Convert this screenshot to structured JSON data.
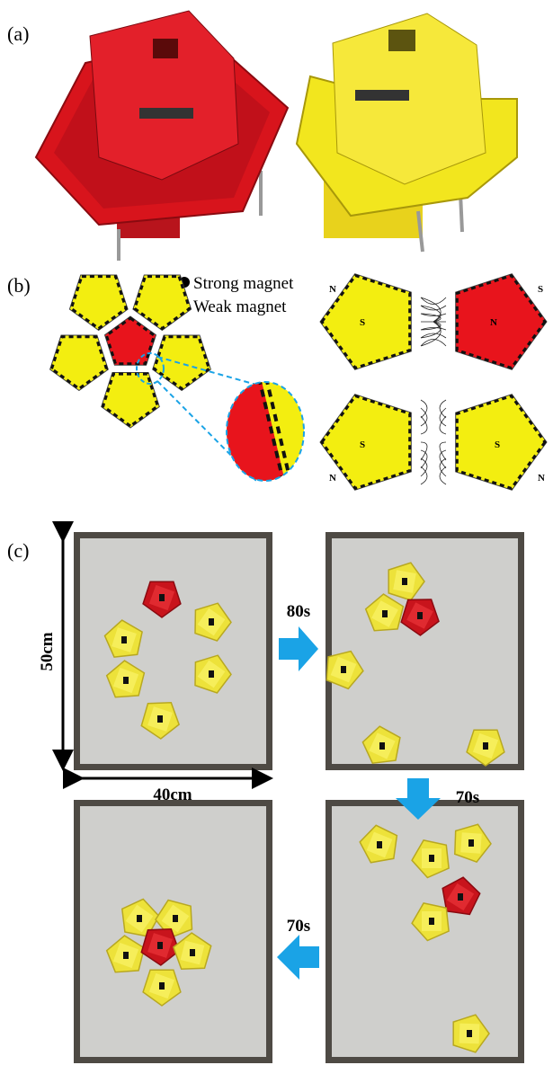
{
  "panels": [
    {
      "label": "(a)"
    },
    {
      "label": "(b)",
      "legend": [
        "Strong magnet",
        "Weak magnet"
      ],
      "poles": [
        "N",
        "S",
        "N",
        "S",
        "S",
        "N",
        "S",
        "N"
      ]
    },
    {
      "label": "(c)",
      "dimensions": {
        "height": "50cm",
        "width": "40cm"
      },
      "steps": [
        "80s",
        "70s",
        "70s"
      ]
    }
  ]
}
